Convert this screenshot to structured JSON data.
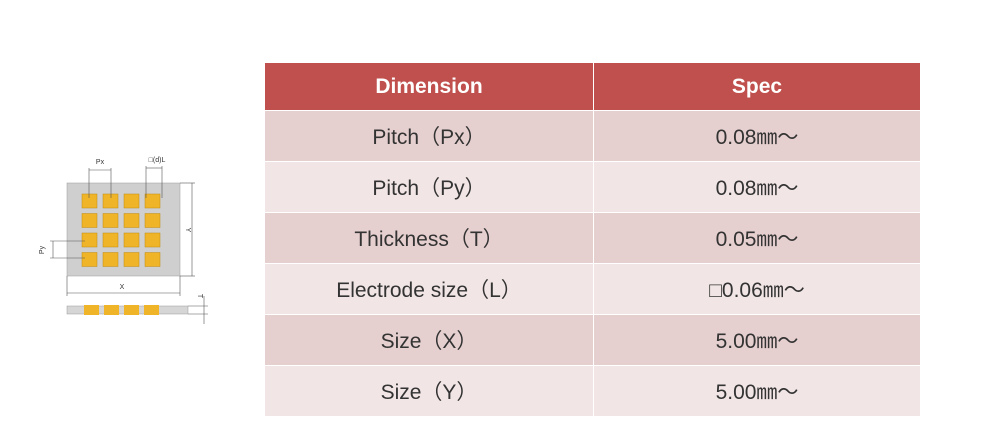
{
  "diagram": {
    "labels": {
      "px": "Px",
      "py": "Py",
      "l": "□(d)L",
      "x": "X",
      "y": "Y",
      "t": "T"
    }
  },
  "table": {
    "header": [
      "Dimension",
      "Spec"
    ],
    "rows": [
      [
        "Pitch（Px）",
        "0.08㎜～"
      ],
      [
        "Pitch（Py）",
        "0.08㎜～"
      ],
      [
        "Thickness（T）",
        "0.05㎜～"
      ],
      [
        "Electrode size（L）",
        "□0.06㎜～"
      ],
      [
        "Size（X）",
        "5.00㎜～"
      ],
      [
        "Size（Y）",
        "5.00㎜～"
      ]
    ]
  }
}
